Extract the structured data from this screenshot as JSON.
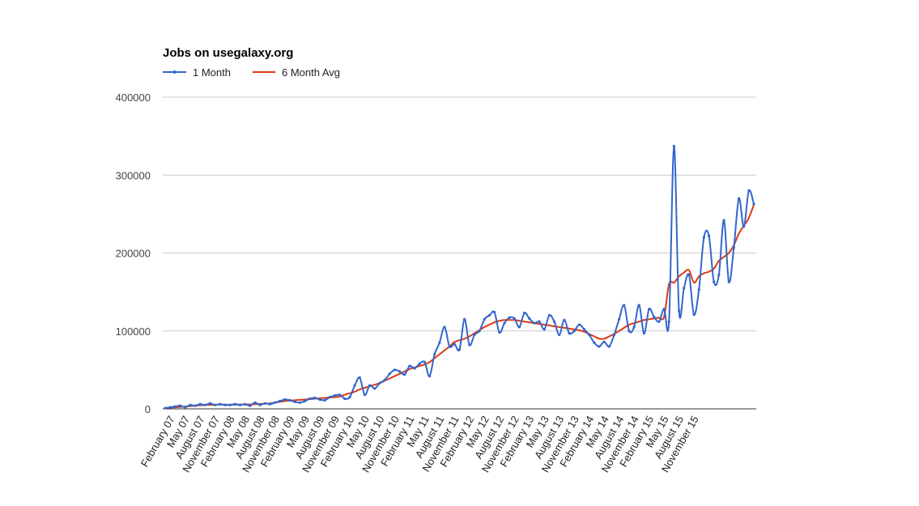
{
  "chart_data": {
    "type": "line",
    "title": "Jobs on usegalaxy.org",
    "xlabel": "",
    "ylabel": "",
    "ylim": [
      0,
      400000
    ],
    "yticks": [
      "0",
      "100000",
      "200000",
      "300000",
      "400000"
    ],
    "grid": true,
    "legend_position": "top-left",
    "xtick_labels": [
      "February 07",
      "May 07",
      "August 07",
      "November 07",
      "February 08",
      "May 08",
      "August 08",
      "November 08",
      "February 09",
      "May 09",
      "August 09",
      "November 09",
      "February 10",
      "May 10",
      "August 10",
      "November 10",
      "February 11",
      "May 11",
      "August 11",
      "November 11",
      "February 12",
      "May 12",
      "August 12",
      "November 12",
      "February 13",
      "May 13",
      "August 13",
      "November 13",
      "February 14",
      "May 14",
      "August 14",
      "November 14",
      "February 15",
      "May 15",
      "August 15",
      "November 15"
    ],
    "series": [
      {
        "name": "1 Month",
        "color": "#3366cc",
        "values": [
          1000,
          2000,
          3000,
          4000,
          2000,
          5000,
          4000,
          6000,
          5000,
          7000,
          5000,
          6000,
          5000,
          5000,
          6000,
          5000,
          6000,
          4000,
          8000,
          5000,
          7000,
          6000,
          8000,
          10000,
          12000,
          11000,
          9000,
          8000,
          10000,
          13000,
          14000,
          12000,
          11000,
          15000,
          17000,
          18000,
          13000,
          15000,
          30000,
          40000,
          18000,
          30000,
          26000,
          33000,
          37000,
          45000,
          50000,
          48000,
          44000,
          55000,
          52000,
          58000,
          60000,
          42000,
          70000,
          85000,
          105000,
          80000,
          83000,
          76000,
          115000,
          82000,
          95000,
          100000,
          115000,
          120000,
          124000,
          98000,
          110000,
          117000,
          116000,
          105000,
          123000,
          116000,
          110000,
          112000,
          102000,
          120000,
          112000,
          95000,
          114000,
          97000,
          100000,
          108000,
          102000,
          95000,
          85000,
          80000,
          86000,
          80000,
          95000,
          115000,
          133000,
          100000,
          105000,
          133000,
          97000,
          128000,
          118000,
          112000,
          128000,
          112000,
          337000,
          126000,
          155000,
          172000,
          121000,
          153000,
          220000,
          222000,
          163000,
          172000,
          242000,
          163000,
          207000,
          270000,
          234000,
          280000,
          263000
        ],
        "points": true
      },
      {
        "name": "6 Month Avg",
        "color": "#dc3912",
        "values": [
          1000,
          1500,
          2000,
          2500,
          3000,
          3500,
          4000,
          4500,
          5000,
          5200,
          5300,
          5400,
          5400,
          5300,
          5400,
          5500,
          5600,
          5700,
          6000,
          6300,
          6700,
          7000,
          8000,
          9000,
          10000,
          10500,
          11000,
          11500,
          12000,
          12500,
          13000,
          13500,
          14000,
          14500,
          15000,
          16000,
          18000,
          20000,
          22000,
          25000,
          27000,
          29000,
          31000,
          33000,
          36000,
          39000,
          42000,
          45000,
          48000,
          51000,
          53000,
          55000,
          57000,
          60000,
          65000,
          70000,
          75000,
          80000,
          86000,
          88000,
          90000,
          93000,
          97000,
          101000,
          105000,
          108000,
          111000,
          113000,
          114000,
          114000,
          114000,
          113000,
          112000,
          111000,
          110000,
          109000,
          108000,
          107000,
          106000,
          105000,
          104000,
          103000,
          102000,
          101000,
          99000,
          96000,
          93000,
          90000,
          90000,
          93000,
          96000,
          100000,
          104000,
          108000,
          110000,
          112000,
          114000,
          115000,
          116000,
          117000,
          118000,
          160000,
          162000,
          170000,
          175000,
          178000,
          162000,
          170000,
          174000,
          176000,
          180000,
          190000,
          195000,
          200000,
          210000,
          225000,
          235000,
          245000,
          262000
        ]
      }
    ]
  }
}
